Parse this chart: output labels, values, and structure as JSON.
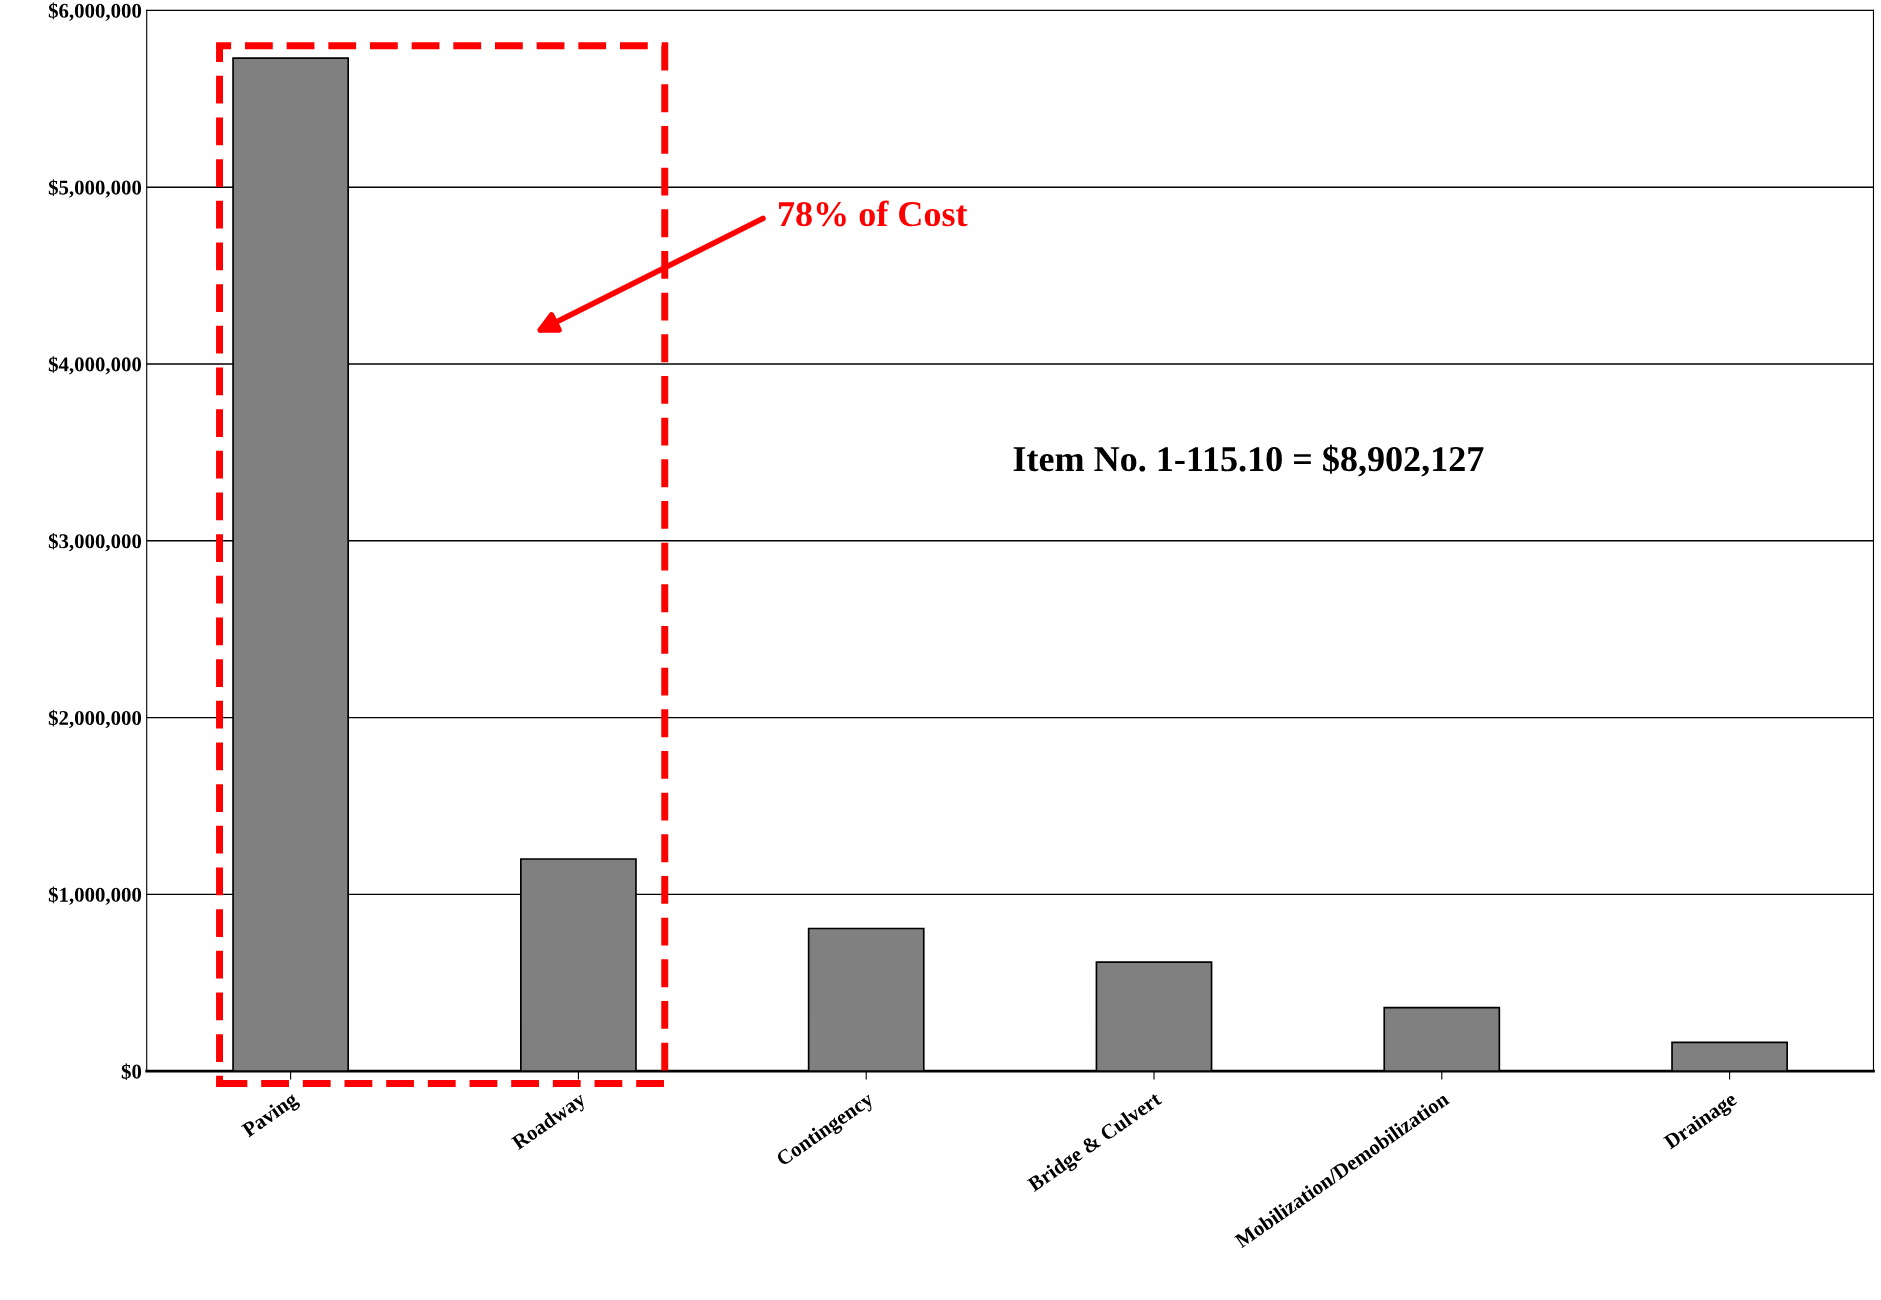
{
  "chart_data": {
    "type": "bar",
    "categories": [
      "Paving",
      "Roadway",
      "Contingency",
      "Bridge & Culvert",
      "Mobilization/Demobilization",
      "Drainage"
    ],
    "values": [
      5730000,
      1200000,
      807000,
      617000,
      360000,
      163000
    ],
    "color": "#808080",
    "ylim": [
      0,
      6000000
    ],
    "yticks": [
      {
        "value": 0,
        "label": "$0"
      },
      {
        "value": 1000000,
        "label": "$1,000,000"
      },
      {
        "value": 2000000,
        "label": "$2,000,000"
      },
      {
        "value": 3000000,
        "label": "$3,000,000"
      },
      {
        "value": 4000000,
        "label": "$4,000,000"
      },
      {
        "value": 5000000,
        "label": "$5,000,000"
      },
      {
        "value": 6000000,
        "label": "$6,000,000"
      }
    ],
    "grid": "y",
    "annotations": [
      "78% of Cost",
      "Item No. 1-115.10 = $8,902,127"
    ]
  }
}
